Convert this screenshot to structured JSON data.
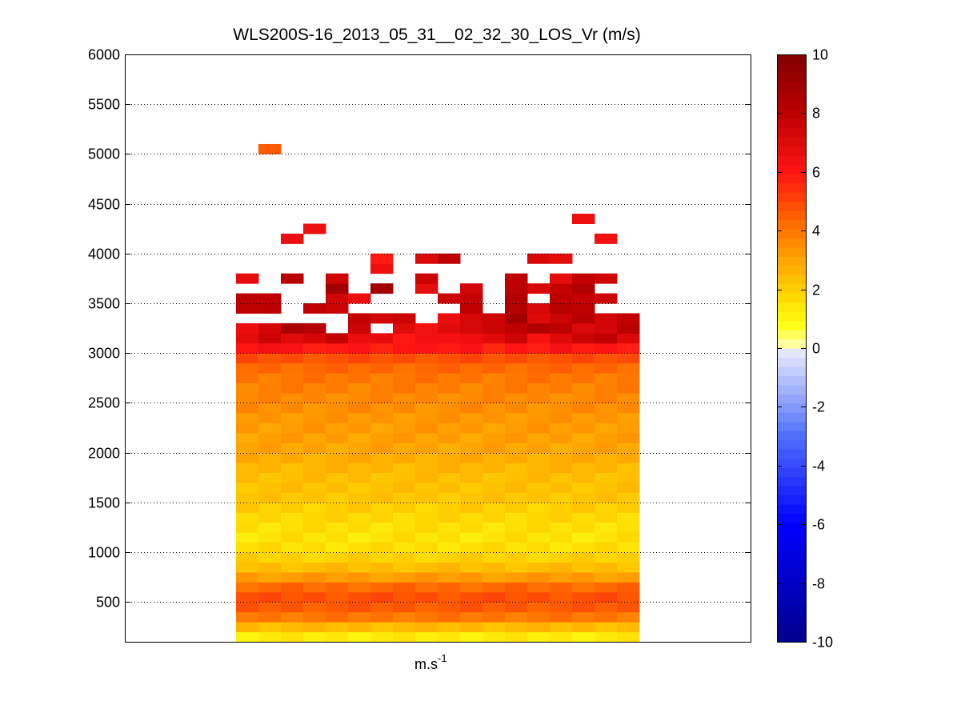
{
  "chart_data": {
    "type": "heatmap",
    "title": "WLS200S-16_2013_05_31__02_32_30_LOS_Vr (m/s)",
    "xlabel_base": "m.s",
    "xlabel_sup": "-1",
    "ylim": [
      100,
      6000
    ],
    "yticks": [
      500,
      1000,
      1500,
      2000,
      2500,
      3000,
      3500,
      4000,
      4500,
      5000,
      5500,
      6000
    ],
    "grid": "y dotted",
    "colorbar": {
      "label_position": "right",
      "clim": [
        -10,
        10
      ],
      "ticks": [
        -10,
        -8,
        -6,
        -4,
        -2,
        0,
        2,
        4,
        6,
        8,
        10
      ]
    },
    "columns": 18,
    "cells": {
      "value_unit": "m/s",
      "bin_height": 100,
      "main_block": {
        "columns": [
          0,
          17
        ],
        "altitude_range": [
          100,
          3000
        ],
        "profile": [
          {
            "altitude": 150,
            "value": 1.3
          },
          {
            "altitude": 250,
            "value": 2.5
          },
          {
            "altitude": 350,
            "value": 4.0
          },
          {
            "altitude": 450,
            "value": 4.6
          },
          {
            "altitude": 550,
            "value": 4.8
          },
          {
            "altitude": 650,
            "value": 4.3
          },
          {
            "altitude": 750,
            "value": 3.2
          },
          {
            "altitude": 850,
            "value": 2.4
          },
          {
            "altitude": 950,
            "value": 1.9
          },
          {
            "altitude": 1050,
            "value": 1.6
          },
          {
            "altitude": 1150,
            "value": 1.5
          },
          {
            "altitude": 1250,
            "value": 1.6
          },
          {
            "altitude": 1350,
            "value": 1.8
          },
          {
            "altitude": 1450,
            "value": 2.0
          },
          {
            "altitude": 1550,
            "value": 2.2
          },
          {
            "altitude": 1650,
            "value": 2.3
          },
          {
            "altitude": 1750,
            "value": 2.4
          },
          {
            "altitude": 1850,
            "value": 2.6
          },
          {
            "altitude": 1950,
            "value": 2.8
          },
          {
            "altitude": 2050,
            "value": 3.0
          },
          {
            "altitude": 2150,
            "value": 3.1
          },
          {
            "altitude": 2250,
            "value": 3.2
          },
          {
            "altitude": 2350,
            "value": 3.3
          },
          {
            "altitude": 2450,
            "value": 3.5
          },
          {
            "altitude": 2550,
            "value": 3.6
          },
          {
            "altitude": 2650,
            "value": 3.8
          },
          {
            "altitude": 2750,
            "value": 4.0
          },
          {
            "altitude": 2850,
            "value": 4.3
          },
          {
            "altitude": 2950,
            "value": 4.8
          }
        ]
      },
      "sparse": [
        {
          "col": 0,
          "alt": 3000,
          "value": 6.0
        },
        {
          "col": 1,
          "alt": 3000,
          "value": 6.3
        },
        {
          "col": 2,
          "alt": 3000,
          "value": 6.2
        },
        {
          "col": 3,
          "alt": 3000,
          "value": 5.8
        },
        {
          "col": 4,
          "alt": 3000,
          "value": 5.9
        },
        {
          "col": 5,
          "alt": 3000,
          "value": 6.1
        },
        {
          "col": 6,
          "alt": 3000,
          "value": 5.7
        },
        {
          "col": 7,
          "alt": 3000,
          "value": 6.0
        },
        {
          "col": 8,
          "alt": 3000,
          "value": 6.1
        },
        {
          "col": 9,
          "alt": 3000,
          "value": 5.9
        },
        {
          "col": 10,
          "alt": 3000,
          "value": 6.2
        },
        {
          "col": 11,
          "alt": 3000,
          "value": 5.6
        },
        {
          "col": 12,
          "alt": 3000,
          "value": 6.0
        },
        {
          "col": 13,
          "alt": 3000,
          "value": 5.8
        },
        {
          "col": 14,
          "alt": 3000,
          "value": 6.3
        },
        {
          "col": 15,
          "alt": 3000,
          "value": 5.9
        },
        {
          "col": 16,
          "alt": 3000,
          "value": 6.1
        },
        {
          "col": 17,
          "alt": 3000,
          "value": 5.8
        },
        {
          "col": 0,
          "alt": 3100,
          "value": 6.8
        },
        {
          "col": 1,
          "alt": 3100,
          "value": 7.6
        },
        {
          "col": 2,
          "alt": 3100,
          "value": 6.9
        },
        {
          "col": 3,
          "alt": 3100,
          "value": 7.2
        },
        {
          "col": 4,
          "alt": 3100,
          "value": 7.8
        },
        {
          "col": 5,
          "alt": 3100,
          "value": 6.6
        },
        {
          "col": 6,
          "alt": 3100,
          "value": 6.8
        },
        {
          "col": 7,
          "alt": 3100,
          "value": 5.9
        },
        {
          "col": 8,
          "alt": 3100,
          "value": 6.4
        },
        {
          "col": 9,
          "alt": 3100,
          "value": 6.3
        },
        {
          "col": 10,
          "alt": 3100,
          "value": 6.5
        },
        {
          "col": 11,
          "alt": 3100,
          "value": 6.9
        },
        {
          "col": 12,
          "alt": 3100,
          "value": 7.5
        },
        {
          "col": 13,
          "alt": 3100,
          "value": 6.2
        },
        {
          "col": 14,
          "alt": 3100,
          "value": 7.0
        },
        {
          "col": 15,
          "alt": 3100,
          "value": 7.6
        },
        {
          "col": 16,
          "alt": 3100,
          "value": 7.9
        },
        {
          "col": 17,
          "alt": 3100,
          "value": 7.1
        },
        {
          "col": 0,
          "alt": 3200,
          "value": 6.6
        },
        {
          "col": 1,
          "alt": 3200,
          "value": 7.4
        },
        {
          "col": 2,
          "alt": 3200,
          "value": 8.6
        },
        {
          "col": 3,
          "alt": 3200,
          "value": 8.2
        },
        {
          "col": 5,
          "alt": 3200,
          "value": 7.6
        },
        {
          "col": 7,
          "alt": 3200,
          "value": 7.0
        },
        {
          "col": 8,
          "alt": 3200,
          "value": 6.4
        },
        {
          "col": 9,
          "alt": 3200,
          "value": 6.9
        },
        {
          "col": 10,
          "alt": 3200,
          "value": 7.3
        },
        {
          "col": 11,
          "alt": 3200,
          "value": 7.6
        },
        {
          "col": 12,
          "alt": 3200,
          "value": 7.9
        },
        {
          "col": 13,
          "alt": 3200,
          "value": 8.4
        },
        {
          "col": 14,
          "alt": 3200,
          "value": 8.0
        },
        {
          "col": 15,
          "alt": 3200,
          "value": 7.1
        },
        {
          "col": 16,
          "alt": 3200,
          "value": 7.4
        },
        {
          "col": 17,
          "alt": 3200,
          "value": 8.1
        },
        {
          "col": 5,
          "alt": 3300,
          "value": 7.8
        },
        {
          "col": 6,
          "alt": 3300,
          "value": 7.4
        },
        {
          "col": 7,
          "alt": 3300,
          "value": 7.6
        },
        {
          "col": 9,
          "alt": 3300,
          "value": 6.6
        },
        {
          "col": 10,
          "alt": 3300,
          "value": 7.3
        },
        {
          "col": 11,
          "alt": 3300,
          "value": 7.5
        },
        {
          "col": 12,
          "alt": 3300,
          "value": 8.9
        },
        {
          "col": 13,
          "alt": 3300,
          "value": 7.0
        },
        {
          "col": 14,
          "alt": 3300,
          "value": 7.6
        },
        {
          "col": 15,
          "alt": 3300,
          "value": 8.2
        },
        {
          "col": 16,
          "alt": 3300,
          "value": 7.4
        },
        {
          "col": 17,
          "alt": 3300,
          "value": 7.8
        },
        {
          "col": 0,
          "alt": 3400,
          "value": 8.0
        },
        {
          "col": 1,
          "alt": 3400,
          "value": 8.1
        },
        {
          "col": 3,
          "alt": 3400,
          "value": 7.9
        },
        {
          "col": 4,
          "alt": 3400,
          "value": 7.6
        },
        {
          "col": 10,
          "alt": 3400,
          "value": 7.9
        },
        {
          "col": 12,
          "alt": 3400,
          "value": 8.3
        },
        {
          "col": 13,
          "alt": 3400,
          "value": 7.2
        },
        {
          "col": 14,
          "alt": 3400,
          "value": 8.2
        },
        {
          "col": 15,
          "alt": 3400,
          "value": 8.0
        },
        {
          "col": 0,
          "alt": 3500,
          "value": 8.1
        },
        {
          "col": 1,
          "alt": 3500,
          "value": 7.9
        },
        {
          "col": 4,
          "alt": 3500,
          "value": 7.4
        },
        {
          "col": 5,
          "alt": 3500,
          "value": 6.6
        },
        {
          "col": 9,
          "alt": 3500,
          "value": 7.6
        },
        {
          "col": 10,
          "alt": 3500,
          "value": 7.7
        },
        {
          "col": 12,
          "alt": 3500,
          "value": 8.4
        },
        {
          "col": 14,
          "alt": 3500,
          "value": 8.0
        },
        {
          "col": 15,
          "alt": 3500,
          "value": 7.8
        },
        {
          "col": 16,
          "alt": 3500,
          "value": 7.6
        },
        {
          "col": 4,
          "alt": 3600,
          "value": 8.9
        },
        {
          "col": 6,
          "alt": 3600,
          "value": 8.8
        },
        {
          "col": 8,
          "alt": 3600,
          "value": 6.8
        },
        {
          "col": 10,
          "alt": 3600,
          "value": 7.4
        },
        {
          "col": 12,
          "alt": 3600,
          "value": 8.1
        },
        {
          "col": 13,
          "alt": 3600,
          "value": 7.2
        },
        {
          "col": 14,
          "alt": 3600,
          "value": 7.8
        },
        {
          "col": 15,
          "alt": 3600,
          "value": 8.4
        },
        {
          "col": 0,
          "alt": 3700,
          "value": 6.8
        },
        {
          "col": 2,
          "alt": 3700,
          "value": 8.2
        },
        {
          "col": 4,
          "alt": 3700,
          "value": 7.5
        },
        {
          "col": 8,
          "alt": 3700,
          "value": 7.6
        },
        {
          "col": 12,
          "alt": 3700,
          "value": 8.0
        },
        {
          "col": 14,
          "alt": 3700,
          "value": 6.8
        },
        {
          "col": 15,
          "alt": 3700,
          "value": 7.9
        },
        {
          "col": 16,
          "alt": 3700,
          "value": 7.5
        },
        {
          "col": 6,
          "alt": 3800,
          "value": 6.5
        },
        {
          "col": 6,
          "alt": 3900,
          "value": 5.9
        },
        {
          "col": 8,
          "alt": 3900,
          "value": 7.1
        },
        {
          "col": 9,
          "alt": 3900,
          "value": 7.9
        },
        {
          "col": 13,
          "alt": 3900,
          "value": 7.2
        },
        {
          "col": 14,
          "alt": 3900,
          "value": 6.8
        },
        {
          "col": 2,
          "alt": 4100,
          "value": 6.6
        },
        {
          "col": 16,
          "alt": 4100,
          "value": 6.4
        },
        {
          "col": 3,
          "alt": 4200,
          "value": 6.6
        },
        {
          "col": 15,
          "alt": 4300,
          "value": 6.6
        },
        {
          "col": 1,
          "alt": 5000,
          "value": 4.6
        }
      ]
    }
  }
}
